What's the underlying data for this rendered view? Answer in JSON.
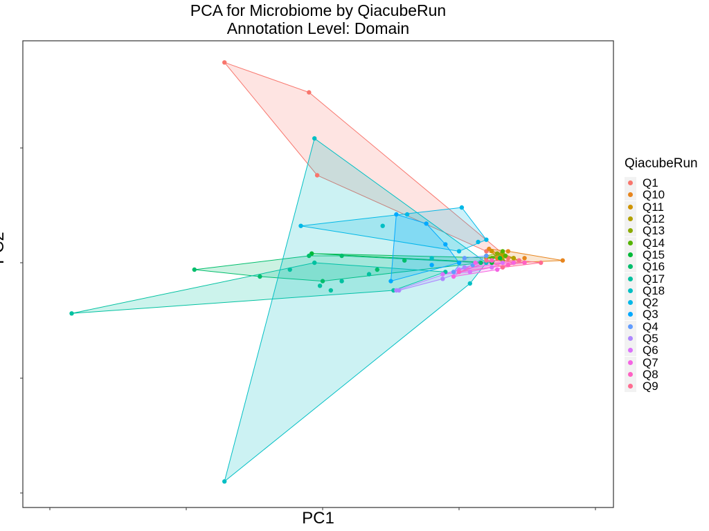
{
  "chart_data": {
    "type": "scatter",
    "title": [
      "PCA for Microbiome by QiacubeRun",
      "Annotation Level: Domain"
    ],
    "xlabel": "PC1",
    "ylabel": "PC2",
    "xlim": [
      -1.0,
      1.0
    ],
    "ylim": [
      -1.0,
      1.0
    ],
    "grid": false,
    "legend_position": "right",
    "legend_title": "QiacubeRun",
    "hulls": true,
    "series": [
      {
        "name": "Q1",
        "color": "#F8766D",
        "points": [
          [
            -0.36,
            0.87
          ],
          [
            -0.05,
            0.74
          ],
          [
            -0.02,
            0.38
          ],
          [
            0.68,
            0.02
          ],
          [
            0.6,
            0.05
          ]
        ]
      },
      {
        "name": "Q10",
        "color": "#E7851E",
        "points": [
          [
            0.88,
            0.01
          ],
          [
            0.61,
            0.06
          ],
          [
            0.68,
            0.05
          ],
          [
            0.7,
            0.0
          ],
          [
            0.74,
            0.02
          ],
          [
            0.64,
            0.02
          ]
        ]
      },
      {
        "name": "Q11",
        "color": "#D09400",
        "points": [
          [
            0.62,
            0.05
          ],
          [
            0.7,
            0.02
          ],
          [
            0.72,
            0.01
          ],
          [
            0.66,
            0.03
          ]
        ]
      },
      {
        "name": "Q12",
        "color": "#B2A100",
        "points": [
          [
            0.66,
            0.04
          ],
          [
            0.6,
            0.02
          ],
          [
            0.7,
            0.02
          ]
        ]
      },
      {
        "name": "Q13",
        "color": "#8BAB00",
        "points": [
          [
            0.64,
            0.04
          ],
          [
            0.6,
            0.03
          ],
          [
            0.66,
            0.01
          ]
        ]
      },
      {
        "name": "Q14",
        "color": "#55B400",
        "points": [
          [
            0.67,
            0.03
          ],
          [
            0.62,
            0.02
          ],
          [
            0.66,
            0.05
          ]
        ]
      },
      {
        "name": "Q15",
        "color": "#00BA38",
        "points": [
          [
            -0.04,
            0.04
          ],
          [
            0.65,
            0.02
          ],
          [
            0.62,
            0.0
          ]
        ]
      },
      {
        "name": "Q16",
        "color": "#00BE6C",
        "points": [
          [
            -0.47,
            -0.03
          ],
          [
            -0.05,
            0.03
          ],
          [
            0.07,
            0.03
          ],
          [
            0.2,
            -0.03
          ],
          [
            0.0,
            -0.08
          ],
          [
            -0.23,
            -0.06
          ],
          [
            0.58,
            0.0
          ],
          [
            0.3,
            0.01
          ]
        ]
      },
      {
        "name": "Q17",
        "color": "#00C1A0",
        "points": [
          [
            -0.92,
            -0.22
          ],
          [
            -0.03,
            0.0
          ],
          [
            0.17,
            -0.05
          ],
          [
            0.26,
            -0.12
          ],
          [
            -0.01,
            -0.1
          ],
          [
            0.03,
            -0.12
          ],
          [
            0.45,
            -0.04
          ],
          [
            0.07,
            -0.08
          ],
          [
            -0.12,
            -0.03
          ]
        ]
      },
      {
        "name": "Q18",
        "color": "#00BFC4",
        "points": [
          [
            -0.36,
            -0.95
          ],
          [
            -0.03,
            0.54
          ],
          [
            0.54,
            -0.09
          ],
          [
            0.6,
            0.0
          ],
          [
            0.22,
            0.16
          ],
          [
            0.4,
            0.02
          ]
        ]
      },
      {
        "name": "Q2",
        "color": "#00B8E7",
        "points": [
          [
            -0.08,
            0.16
          ],
          [
            0.51,
            0.24
          ],
          [
            0.57,
            0.09
          ],
          [
            0.6,
            0.1
          ],
          [
            0.31,
            0.21
          ],
          [
            0.5,
            0.05
          ]
        ]
      },
      {
        "name": "Q3",
        "color": "#00A9FF",
        "points": [
          [
            0.27,
            0.21
          ],
          [
            0.38,
            0.17
          ],
          [
            0.25,
            -0.08
          ],
          [
            0.4,
            -0.01
          ],
          [
            0.45,
            0.08
          ],
          [
            0.5,
            0.0
          ]
        ]
      },
      {
        "name": "Q4",
        "color": "#619CFF",
        "points": [
          [
            0.52,
            0.02
          ],
          [
            0.55,
            -0.01
          ],
          [
            0.6,
            0.03
          ],
          [
            0.48,
            -0.04
          ]
        ]
      },
      {
        "name": "Q5",
        "color": "#AE87FF",
        "points": [
          [
            0.27,
            -0.12
          ],
          [
            0.28,
            -0.12
          ],
          [
            0.44,
            -0.07
          ],
          [
            0.52,
            -0.02
          ],
          [
            0.62,
            0.01
          ]
        ]
      },
      {
        "name": "Q6",
        "color": "#DB72FB",
        "points": [
          [
            0.44,
            -0.05
          ],
          [
            0.54,
            -0.04
          ],
          [
            0.62,
            -0.02
          ],
          [
            0.66,
            0.0
          ],
          [
            0.5,
            -0.03
          ]
        ]
      },
      {
        "name": "Q7",
        "color": "#F564E3",
        "points": [
          [
            0.48,
            -0.06
          ],
          [
            0.64,
            -0.03
          ],
          [
            0.7,
            0.0
          ],
          [
            0.56,
            0.0
          ]
        ]
      },
      {
        "name": "Q8",
        "color": "#FF61C3",
        "points": [
          [
            0.5,
            -0.04
          ],
          [
            0.68,
            -0.01
          ],
          [
            0.74,
            0.0
          ],
          [
            0.62,
            0.01
          ]
        ]
      },
      {
        "name": "Q9",
        "color": "#FF6C91",
        "points": [
          [
            0.6,
            0.01
          ],
          [
            0.8,
            0.0
          ],
          [
            0.72,
            0.01
          ],
          [
            0.66,
            -0.02
          ]
        ]
      }
    ]
  }
}
